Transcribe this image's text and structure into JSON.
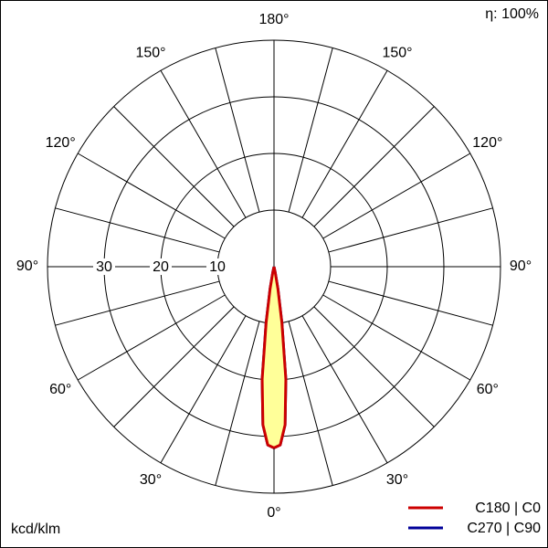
{
  "chart_data": {
    "type": "polar",
    "efficiency_label": "η: 100%",
    "unit_label": "kcd/klm",
    "angles": [
      0,
      2,
      4,
      6,
      8,
      10,
      12,
      15
    ],
    "rlim": [
      0,
      40
    ],
    "rticks": [
      10,
      20,
      30
    ],
    "angle_ticks": [
      {
        "value": 0,
        "label": "0°"
      },
      {
        "value": 30,
        "label": "30°"
      },
      {
        "value": 60,
        "label": "60°"
      },
      {
        "value": 90,
        "label": "90°"
      },
      {
        "value": 120,
        "label": "120°"
      },
      {
        "value": 150,
        "label": "150°"
      },
      {
        "value": 180,
        "label": "180°"
      }
    ],
    "fill": "#ffff99",
    "series": [
      {
        "name": "C270 | C90",
        "color": "#000099",
        "values": [
          32,
          31.5,
          28,
          20,
          10,
          4,
          1,
          0
        ]
      },
      {
        "name": "C180 | C0",
        "color": "#cc0000",
        "values": [
          32,
          31.5,
          28,
          20,
          10,
          4,
          1,
          0
        ]
      }
    ]
  }
}
